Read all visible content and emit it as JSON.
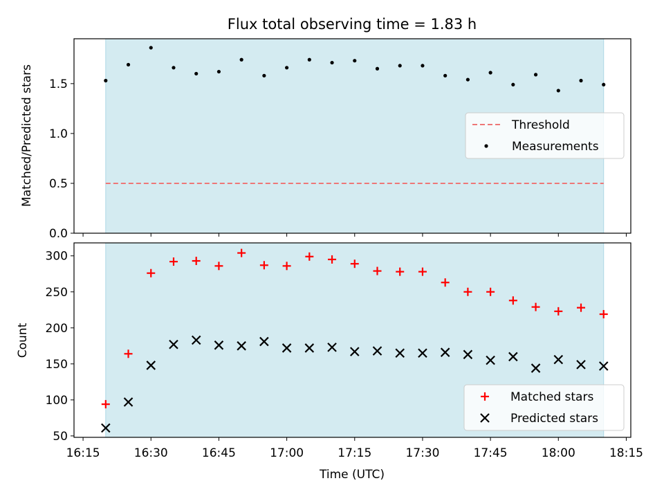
{
  "title": "Flux total observing time = 1.83 h",
  "x_axis": {
    "label": "Time (UTC)",
    "ticks": [
      "16:15",
      "16:30",
      "16:45",
      "17:00",
      "17:15",
      "17:30",
      "17:45",
      "18:00",
      "18:15"
    ],
    "tick_minutes": [
      975,
      990,
      1005,
      1020,
      1035,
      1050,
      1065,
      1080,
      1095
    ],
    "range_minutes": [
      973,
      1096
    ],
    "shaded_span_minutes": [
      980,
      1090
    ],
    "shade_color": "#d4ebf1"
  },
  "chart_data": [
    {
      "type": "scatter",
      "panel": "top",
      "title": "Flux total observing time = 1.83 h",
      "xlabel": "Time (UTC)",
      "ylabel": "Matched/Predicted stars",
      "ylim": [
        0,
        1.95
      ],
      "yticks": [
        0.0,
        0.5,
        1.0,
        1.5
      ],
      "ytick_labels": [
        "0.0",
        "0.5",
        "1.0",
        "1.5"
      ],
      "x_minutes": [
        980,
        985,
        990,
        995,
        1000,
        1005,
        1010,
        1015,
        1020,
        1025,
        1030,
        1035,
        1040,
        1045,
        1050,
        1055,
        1060,
        1065,
        1070,
        1075,
        1080,
        1085,
        1090
      ],
      "series": [
        {
          "name": "Measurements",
          "marker": "dot",
          "color": "#000000",
          "values": [
            1.53,
            1.69,
            1.86,
            1.66,
            1.6,
            1.62,
            1.74,
            1.58,
            1.66,
            1.74,
            1.71,
            1.73,
            1.65,
            1.68,
            1.68,
            1.58,
            1.54,
            1.61,
            1.49,
            1.59,
            1.43,
            1.53,
            1.49
          ]
        },
        {
          "name": "Threshold",
          "marker": "dashed-line",
          "color": "#ee7777",
          "value": 0.5
        }
      ],
      "legend": {
        "position": "center-right",
        "entries": [
          "Threshold",
          "Measurements"
        ]
      }
    },
    {
      "type": "scatter",
      "panel": "bottom",
      "xlabel": "Time (UTC)",
      "ylabel": "Count",
      "ylim": [
        48,
        318
      ],
      "yticks": [
        50,
        100,
        150,
        200,
        250,
        300
      ],
      "ytick_labels": [
        "50",
        "100",
        "150",
        "200",
        "250",
        "300"
      ],
      "x_minutes": [
        980,
        985,
        990,
        995,
        1000,
        1005,
        1010,
        1015,
        1020,
        1025,
        1030,
        1035,
        1040,
        1045,
        1050,
        1055,
        1060,
        1065,
        1070,
        1075,
        1080,
        1085,
        1090
      ],
      "series": [
        {
          "name": "Matched stars",
          "marker": "plus",
          "color": "#ff0000",
          "values": [
            94,
            164,
            276,
            292,
            293,
            286,
            304,
            287,
            286,
            299,
            295,
            289,
            279,
            278,
            278,
            263,
            250,
            250,
            238,
            229,
            223,
            228,
            219
          ]
        },
        {
          "name": "Predicted stars",
          "marker": "x",
          "color": "#000000",
          "values": [
            61,
            97,
            148,
            177,
            183,
            176,
            175,
            181,
            172,
            172,
            173,
            167,
            168,
            165,
            165,
            166,
            163,
            155,
            160,
            144,
            156,
            149,
            147
          ]
        }
      ],
      "legend": {
        "position": "lower-right",
        "entries": [
          "Matched stars",
          "Predicted stars"
        ]
      }
    }
  ]
}
